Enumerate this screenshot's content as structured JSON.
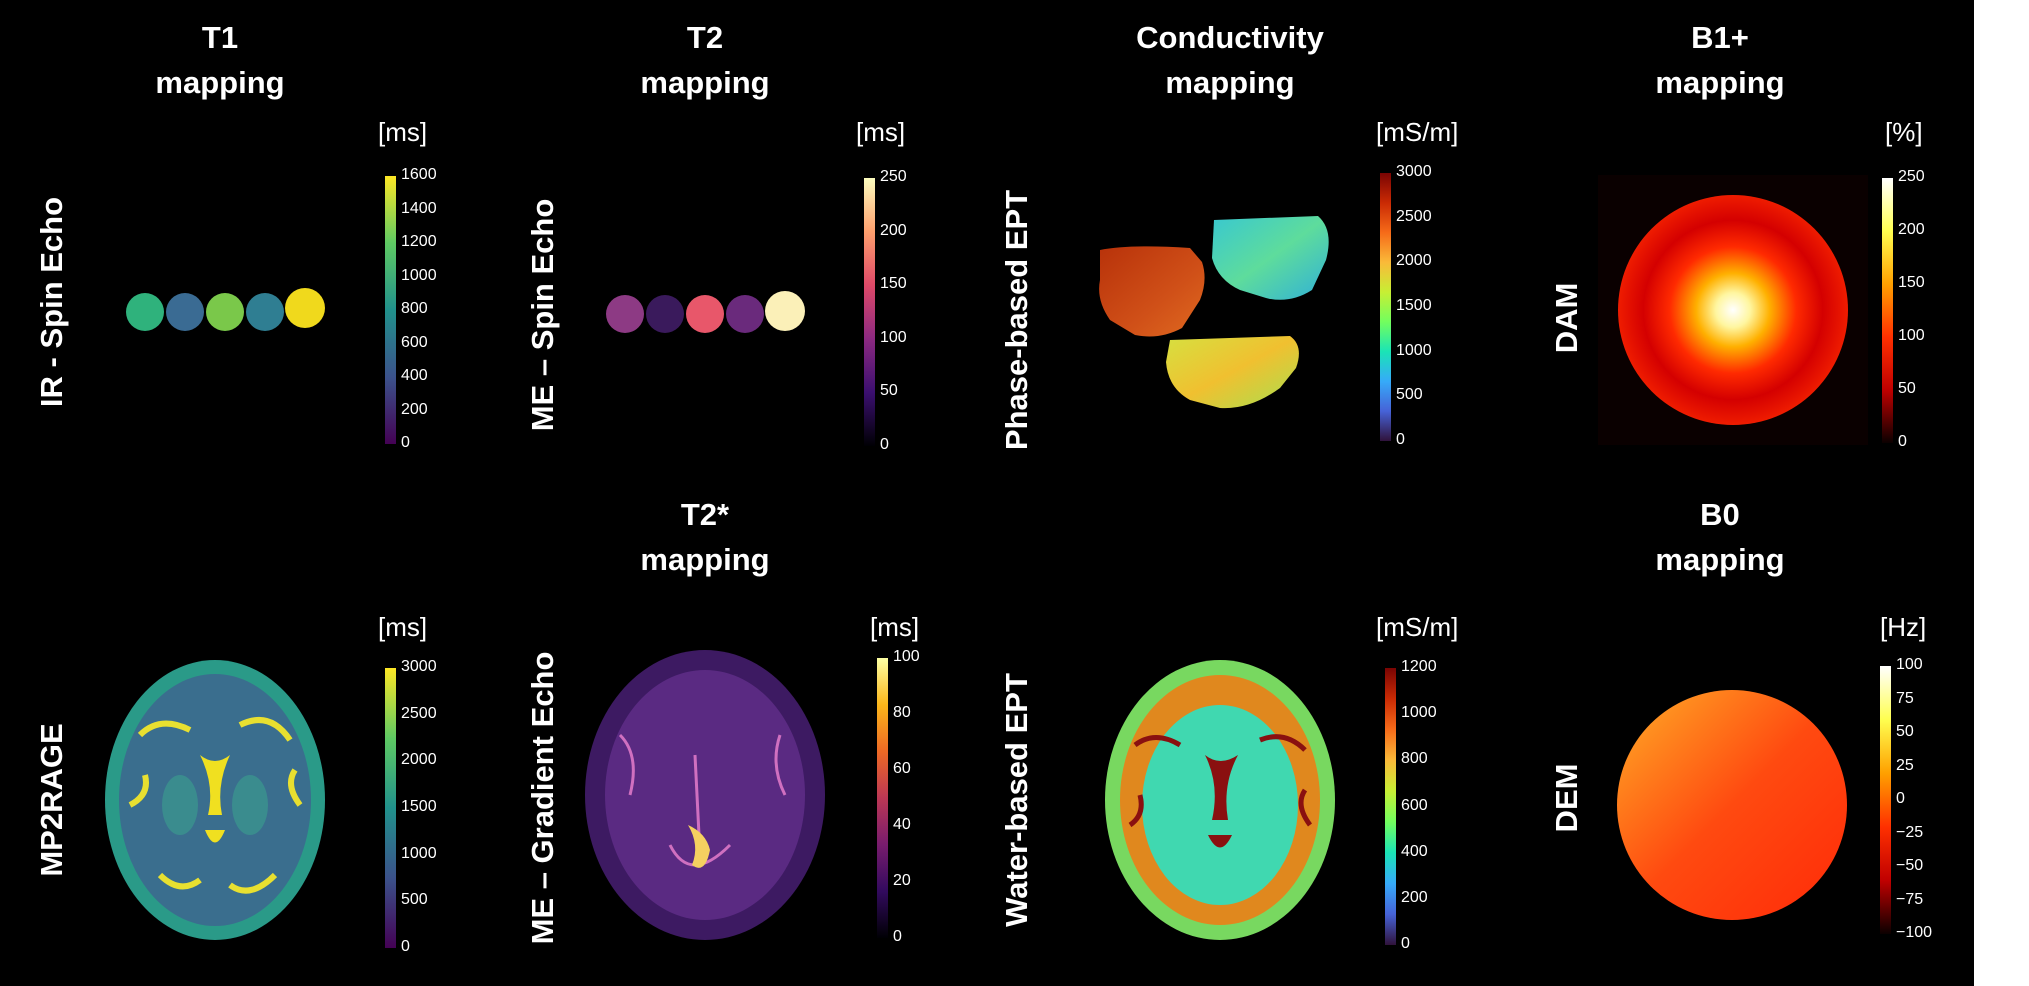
{
  "columns": [
    {
      "title_line1": "T1",
      "title_line2": "mapping"
    },
    {
      "title_line1": "T2",
      "title_line2": "mapping"
    },
    {
      "title_line1": "Conductivity",
      "title_line2": "mapping"
    },
    {
      "title_line1": "B1+",
      "title_line2": "mapping"
    }
  ],
  "row2_titles": [
    {
      "title_line1": "T2*",
      "title_line2": "mapping"
    },
    {
      "title_line1": "B0",
      "title_line2": "mapping"
    }
  ],
  "row_labels": {
    "t1_top": "IR - Spin Echo",
    "t2_top": "ME – Spin Echo",
    "cond_top": "Phase-based EPT",
    "b1_top": "DAM",
    "t1_bottom": "MP2RAGE",
    "t2star_bottom": "ME – Gradient Echo",
    "cond_bottom": "Water-based EPT",
    "b0_bottom": "DEM"
  },
  "colorbars": [
    {
      "id": "t1-ir",
      "unit": "[ms]",
      "ticks": [
        "1600",
        "1400",
        "1200",
        "1000",
        "800",
        "600",
        "400",
        "200",
        "0"
      ],
      "colormap": "viridis"
    },
    {
      "id": "t2-me",
      "unit": "[ms]",
      "ticks": [
        "250",
        "200",
        "150",
        "100",
        "50",
        "0"
      ],
      "colormap": "magma"
    },
    {
      "id": "cond-phase",
      "unit": "[mS/m]",
      "ticks": [
        "3000",
        "2500",
        "2000",
        "1500",
        "1000",
        "500",
        "0"
      ],
      "colormap": "turbo"
    },
    {
      "id": "b1-dam",
      "unit": "[%]",
      "ticks": [
        "250",
        "200",
        "150",
        "100",
        "50",
        "0"
      ],
      "colormap": "hot"
    },
    {
      "id": "t1-mp2rage",
      "unit": "[ms]",
      "ticks": [
        "3000",
        "2500",
        "2000",
        "1500",
        "1000",
        "500",
        "0"
      ],
      "colormap": "viridis"
    },
    {
      "id": "t2star-meg",
      "unit": "[ms]",
      "ticks": [
        "100",
        "80",
        "60",
        "40",
        "20",
        "0"
      ],
      "colormap": "inferno"
    },
    {
      "id": "cond-water",
      "unit": "[mS/m]",
      "ticks": [
        "1200",
        "1000",
        "800",
        "600",
        "400",
        "200",
        "0"
      ],
      "colormap": "turbo"
    },
    {
      "id": "b0-dem",
      "unit": "[Hz]",
      "ticks": [
        "100",
        "75",
        "50",
        "25",
        "0",
        "−25",
        "−50",
        "−75",
        "−100"
      ],
      "colormap": "hot"
    }
  ],
  "t1_phantom_colors": [
    "#2fb27c",
    "#3a6b93",
    "#7ac84a",
    "#2f7e92",
    "#f0d91c"
  ],
  "t2_phantom_colors": [
    "#8d3a84",
    "#3a1a5c",
    "#e8576a",
    "#6a2a7c",
    "#fbf0b8"
  ],
  "colors": {
    "background": "#000000",
    "text": "#ffffff",
    "page": "#ffffff"
  }
}
